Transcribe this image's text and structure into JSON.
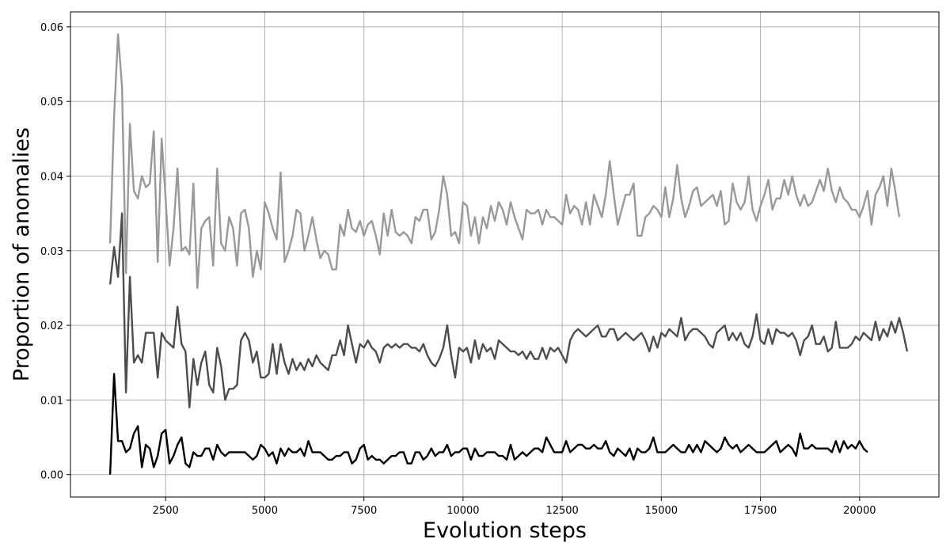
{
  "chart_data": {
    "type": "line",
    "title": "",
    "xlabel": "Evolution steps",
    "ylabel": "Proportion of anomalies",
    "xlim": [
      100,
      22000
    ],
    "ylim": [
      -0.003,
      0.062
    ],
    "grid": true,
    "legend": "none",
    "x_ticks": [
      2500,
      5000,
      7500,
      10000,
      12500,
      15000,
      17500,
      20000
    ],
    "x_tick_labels": [
      "2500",
      "5000",
      "7500",
      "10000",
      "12500",
      "15000",
      "17500",
      "20000"
    ],
    "y_ticks": [
      0.0,
      0.01,
      0.02,
      0.03,
      0.04,
      0.05,
      0.06
    ],
    "y_tick_labels": [
      "0.00",
      "0.01",
      "0.02",
      "0.03",
      "0.04",
      "0.05",
      "0.06"
    ],
    "x_start": 1100,
    "x_step": 100,
    "series": [
      {
        "color": "#999999",
        "values": [
          0.031,
          0.048,
          0.059,
          0.052,
          0.027,
          0.047,
          0.038,
          0.037,
          0.04,
          0.0385,
          0.039,
          0.046,
          0.0285,
          0.045,
          0.037,
          0.028,
          0.033,
          0.041,
          0.03,
          0.0305,
          0.0295,
          0.039,
          0.025,
          0.033,
          0.034,
          0.0345,
          0.028,
          0.041,
          0.031,
          0.03,
          0.0345,
          0.033,
          0.028,
          0.035,
          0.0355,
          0.033,
          0.0265,
          0.03,
          0.0275,
          0.0365,
          0.035,
          0.033,
          0.0315,
          0.0405,
          0.0285,
          0.03,
          0.032,
          0.0355,
          0.035,
          0.03,
          0.032,
          0.0345,
          0.0315,
          0.029,
          0.03,
          0.0295,
          0.0275,
          0.0275,
          0.0335,
          0.032,
          0.0355,
          0.033,
          0.0325,
          0.034,
          0.032,
          0.0335,
          0.034,
          0.032,
          0.0295,
          0.035,
          0.032,
          0.0355,
          0.0325,
          0.032,
          0.0325,
          0.032,
          0.031,
          0.0345,
          0.034,
          0.0355,
          0.0355,
          0.0315,
          0.0325,
          0.0355,
          0.04,
          0.0375,
          0.032,
          0.0325,
          0.031,
          0.0365,
          0.036,
          0.032,
          0.0345,
          0.031,
          0.0345,
          0.033,
          0.036,
          0.034,
          0.0365,
          0.0355,
          0.0335,
          0.0365,
          0.0345,
          0.033,
          0.0315,
          0.0355,
          0.035,
          0.035,
          0.0355,
          0.0335,
          0.0355,
          0.0345,
          0.0345,
          0.034,
          0.0335,
          0.0375,
          0.035,
          0.036,
          0.0355,
          0.0335,
          0.0365,
          0.0335,
          0.0375,
          0.036,
          0.0345,
          0.0375,
          0.042,
          0.0375,
          0.0335,
          0.0355,
          0.0375,
          0.0375,
          0.039,
          0.032,
          0.032,
          0.0345,
          0.035,
          0.036,
          0.0355,
          0.0345,
          0.0385,
          0.0345,
          0.037,
          0.0415,
          0.037,
          0.0345,
          0.036,
          0.038,
          0.0385,
          0.036,
          0.0365,
          0.037,
          0.0375,
          0.036,
          0.038,
          0.0335,
          0.034,
          0.039,
          0.0365,
          0.0355,
          0.0365,
          0.04,
          0.0355,
          0.034,
          0.036,
          0.0375,
          0.0395,
          0.0355,
          0.037,
          0.037,
          0.0395,
          0.0375,
          0.04,
          0.0375,
          0.036,
          0.0375,
          0.036,
          0.0365,
          0.038,
          0.0395,
          0.038,
          0.041,
          0.038,
          0.0365,
          0.0385,
          0.037,
          0.0365,
          0.0355,
          0.0355,
          0.0345,
          0.036,
          0.038,
          0.0335,
          0.0375,
          0.0385,
          0.04,
          0.036,
          0.041,
          0.038,
          0.0345
        ]
      },
      {
        "color": "#4d4d4d",
        "values": [
          0.0255,
          0.0305,
          0.0265,
          0.035,
          0.011,
          0.0265,
          0.015,
          0.016,
          0.015,
          0.019,
          0.019,
          0.019,
          0.013,
          0.019,
          0.018,
          0.0175,
          0.017,
          0.0225,
          0.0175,
          0.0165,
          0.009,
          0.0155,
          0.012,
          0.015,
          0.0165,
          0.012,
          0.011,
          0.017,
          0.0145,
          0.01,
          0.0115,
          0.0115,
          0.012,
          0.018,
          0.019,
          0.018,
          0.015,
          0.0165,
          0.013,
          0.013,
          0.0135,
          0.0175,
          0.0135,
          0.0175,
          0.015,
          0.0135,
          0.0155,
          0.014,
          0.015,
          0.014,
          0.0155,
          0.0145,
          0.016,
          0.015,
          0.0145,
          0.014,
          0.016,
          0.016,
          0.018,
          0.016,
          0.02,
          0.0175,
          0.015,
          0.0175,
          0.017,
          0.018,
          0.017,
          0.0165,
          0.015,
          0.017,
          0.0175,
          0.017,
          0.0175,
          0.017,
          0.0175,
          0.0175,
          0.017,
          0.017,
          0.0165,
          0.0175,
          0.016,
          0.015,
          0.0145,
          0.0155,
          0.017,
          0.02,
          0.016,
          0.013,
          0.017,
          0.0165,
          0.017,
          0.015,
          0.018,
          0.0155,
          0.0175,
          0.0165,
          0.017,
          0.0155,
          0.018,
          0.0175,
          0.017,
          0.0165,
          0.0165,
          0.016,
          0.0165,
          0.0155,
          0.0165,
          0.0155,
          0.0155,
          0.017,
          0.0155,
          0.017,
          0.0165,
          0.017,
          0.016,
          0.015,
          0.018,
          0.019,
          0.0195,
          0.019,
          0.0185,
          0.019,
          0.0195,
          0.02,
          0.0185,
          0.0185,
          0.0195,
          0.0195,
          0.018,
          0.0185,
          0.019,
          0.0185,
          0.018,
          0.0185,
          0.019,
          0.018,
          0.0165,
          0.0185,
          0.017,
          0.019,
          0.0185,
          0.0195,
          0.019,
          0.0185,
          0.021,
          0.018,
          0.019,
          0.0195,
          0.0195,
          0.019,
          0.0185,
          0.0175,
          0.017,
          0.019,
          0.0195,
          0.02,
          0.018,
          0.019,
          0.018,
          0.019,
          0.0175,
          0.017,
          0.0185,
          0.0215,
          0.018,
          0.0175,
          0.0195,
          0.0175,
          0.0195,
          0.019,
          0.019,
          0.0185,
          0.019,
          0.018,
          0.016,
          0.018,
          0.0185,
          0.02,
          0.0175,
          0.0175,
          0.0185,
          0.0165,
          0.017,
          0.0205,
          0.017,
          0.017,
          0.017,
          0.0175,
          0.0185,
          0.018,
          0.019,
          0.0185,
          0.018,
          0.0205,
          0.018,
          0.0195,
          0.0185,
          0.0205,
          0.019,
          0.021,
          0.019,
          0.0165
        ]
      },
      {
        "color": "#000000",
        "values": [
          0.0,
          0.0135,
          0.0045,
          0.0045,
          0.003,
          0.0035,
          0.0055,
          0.0065,
          0.001,
          0.004,
          0.0035,
          0.001,
          0.0025,
          0.0055,
          0.006,
          0.0015,
          0.0025,
          0.004,
          0.005,
          0.0015,
          0.001,
          0.003,
          0.0025,
          0.0025,
          0.0035,
          0.0035,
          0.002,
          0.004,
          0.003,
          0.0025,
          0.003,
          0.003,
          0.003,
          0.003,
          0.003,
          0.0025,
          0.002,
          0.0025,
          0.004,
          0.0035,
          0.0025,
          0.003,
          0.0015,
          0.0035,
          0.0025,
          0.0035,
          0.003,
          0.003,
          0.0035,
          0.0025,
          0.0045,
          0.003,
          0.003,
          0.003,
          0.0025,
          0.002,
          0.002,
          0.0025,
          0.0025,
          0.003,
          0.003,
          0.0015,
          0.002,
          0.0035,
          0.004,
          0.002,
          0.0025,
          0.002,
          0.002,
          0.0015,
          0.002,
          0.0025,
          0.0025,
          0.003,
          0.003,
          0.0015,
          0.0015,
          0.003,
          0.003,
          0.002,
          0.0025,
          0.0035,
          0.0025,
          0.003,
          0.003,
          0.004,
          0.0025,
          0.003,
          0.003,
          0.0035,
          0.0035,
          0.002,
          0.0035,
          0.0025,
          0.0025,
          0.003,
          0.003,
          0.003,
          0.0025,
          0.0025,
          0.002,
          0.004,
          0.002,
          0.0025,
          0.003,
          0.0025,
          0.003,
          0.0035,
          0.0035,
          0.003,
          0.005,
          0.004,
          0.003,
          0.003,
          0.003,
          0.0045,
          0.003,
          0.0035,
          0.004,
          0.004,
          0.0035,
          0.0035,
          0.004,
          0.0035,
          0.0035,
          0.0045,
          0.003,
          0.0025,
          0.0035,
          0.003,
          0.0025,
          0.0035,
          0.002,
          0.0035,
          0.003,
          0.003,
          0.0035,
          0.005,
          0.003,
          0.003,
          0.003,
          0.0035,
          0.004,
          0.0035,
          0.003,
          0.003,
          0.004,
          0.003,
          0.004,
          0.003,
          0.0045,
          0.004,
          0.0035,
          0.003,
          0.0035,
          0.005,
          0.004,
          0.0035,
          0.004,
          0.003,
          0.0035,
          0.004,
          0.0035,
          0.003,
          0.003,
          0.003,
          0.0035,
          0.004,
          0.0045,
          0.003,
          0.0035,
          0.004,
          0.0035,
          0.0025,
          0.0055,
          0.0035,
          0.0035,
          0.004,
          0.0035,
          0.0035,
          0.0035,
          0.0035,
          0.003,
          0.0045,
          0.003,
          0.0045,
          0.0035,
          0.004,
          0.0035,
          0.0045,
          0.0035,
          0.003
        ]
      }
    ]
  }
}
